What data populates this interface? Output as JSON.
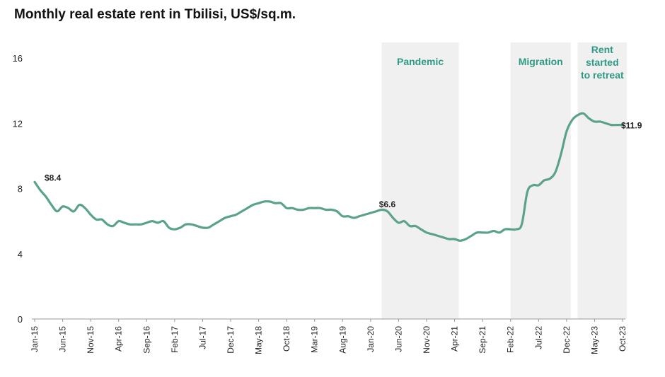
{
  "chart_data": {
    "type": "line",
    "title": "Monthly real estate rent in Tbilisi, US$/sq.m.",
    "xlabel": "",
    "ylabel": "",
    "ylim": [
      0,
      16
    ],
    "yticks": [
      "0",
      "4",
      "8",
      "12",
      "16"
    ],
    "grid": false,
    "line_color": "#5aa38a",
    "band_color": "#f0f0f0",
    "band_label_color": "#2e9a86",
    "x_tick_labels": [
      "Jan-15",
      "Jun-15",
      "Nov-15",
      "Apr-16",
      "Sep-16",
      "Feb-17",
      "Jul-17",
      "Dec-17",
      "May-18",
      "Oct-18",
      "Mar-19",
      "Aug-19",
      "Jan-20",
      "Jun-20",
      "Nov-20",
      "Apr-21",
      "Sep-21",
      "Feb-22",
      "Jul-22",
      "Dec-22",
      "May-23",
      "Oct-23"
    ],
    "series": [
      {
        "x": [
          "2015-01",
          "2015-02",
          "2015-03",
          "2015-04",
          "2015-05",
          "2015-06",
          "2015-07",
          "2015-08",
          "2015-09",
          "2015-10",
          "2015-11",
          "2015-12",
          "2016-01",
          "2016-02",
          "2016-03",
          "2016-04",
          "2016-05",
          "2016-06",
          "2016-07",
          "2016-08",
          "2016-09",
          "2016-10",
          "2016-11",
          "2016-12",
          "2017-01",
          "2017-02",
          "2017-03",
          "2017-04",
          "2017-05",
          "2017-06",
          "2017-07",
          "2017-08",
          "2017-09",
          "2017-10",
          "2017-11",
          "2017-12",
          "2018-01",
          "2018-02",
          "2018-03",
          "2018-04",
          "2018-05",
          "2018-06",
          "2018-07",
          "2018-08",
          "2018-09",
          "2018-10",
          "2018-11",
          "2018-12",
          "2019-01",
          "2019-02",
          "2019-03",
          "2019-04",
          "2019-05",
          "2019-06",
          "2019-07",
          "2019-08",
          "2019-09",
          "2019-10",
          "2019-11",
          "2019-12",
          "2020-01",
          "2020-02",
          "2020-03",
          "2020-04",
          "2020-05",
          "2020-06",
          "2020-07",
          "2020-08",
          "2020-09",
          "2020-10",
          "2020-11",
          "2020-12",
          "2021-01",
          "2021-02",
          "2021-03",
          "2021-04",
          "2021-05",
          "2021-06",
          "2021-07",
          "2021-08",
          "2021-09",
          "2021-10",
          "2021-11",
          "2021-12",
          "2022-01",
          "2022-02",
          "2022-03",
          "2022-04",
          "2022-05",
          "2022-06",
          "2022-07",
          "2022-08",
          "2022-09",
          "2022-10",
          "2022-11",
          "2022-12",
          "2023-01",
          "2023-02",
          "2023-03",
          "2023-04",
          "2023-05",
          "2023-06",
          "2023-07",
          "2023-08",
          "2023-09",
          "2023-10"
        ],
        "values": [
          8.4,
          7.9,
          7.5,
          7.0,
          6.6,
          6.9,
          6.8,
          6.6,
          7.0,
          6.8,
          6.4,
          6.1,
          6.1,
          5.8,
          5.7,
          6.0,
          5.9,
          5.8,
          5.8,
          5.8,
          5.9,
          6.0,
          5.9,
          6.0,
          5.6,
          5.5,
          5.6,
          5.8,
          5.8,
          5.7,
          5.6,
          5.6,
          5.8,
          6.0,
          6.2,
          6.3,
          6.4,
          6.6,
          6.8,
          7.0,
          7.1,
          7.2,
          7.2,
          7.1,
          7.1,
          6.8,
          6.8,
          6.7,
          6.7,
          6.8,
          6.8,
          6.8,
          6.7,
          6.7,
          6.6,
          6.3,
          6.3,
          6.2,
          6.3,
          6.4,
          6.5,
          6.6,
          6.7,
          6.6,
          6.2,
          5.9,
          6.0,
          5.7,
          5.7,
          5.5,
          5.3,
          5.2,
          5.1,
          5.0,
          4.9,
          4.9,
          4.8,
          4.9,
          5.1,
          5.3,
          5.3,
          5.3,
          5.4,
          5.3,
          5.5,
          5.5,
          5.5,
          5.8,
          7.8,
          8.2,
          8.2,
          8.5,
          8.6,
          9.0,
          10.1,
          11.5,
          12.2,
          12.5,
          12.6,
          12.3,
          12.1,
          12.1,
          12.0,
          11.9,
          11.9,
          11.9
        ]
      }
    ],
    "bands": [
      {
        "label": "Pandemic",
        "start": "2020-04",
        "end": "2021-04"
      },
      {
        "label": "Migration",
        "start": "2022-03",
        "end": "2022-12"
      },
      {
        "label": "Rent started to retreat",
        "label_lines": [
          "Rent",
          "started",
          "to retreat"
        ],
        "start": "2023-03",
        "end": "2023-10"
      }
    ],
    "annotations": [
      {
        "text": "$8.4",
        "x": "2015-01",
        "y": 8.4
      },
      {
        "text": "$6.6",
        "x": "2020-02",
        "y": 6.6
      },
      {
        "text": "$11.9",
        "x": "2023-10",
        "y": 11.9
      }
    ]
  }
}
